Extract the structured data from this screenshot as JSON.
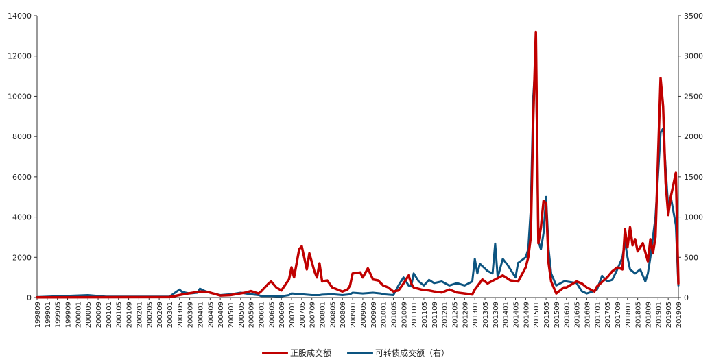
{
  "chart_data": {
    "type": "line",
    "title": "",
    "xlabel": "",
    "ylabel": "",
    "ylim_left": [
      0,
      14000
    ],
    "ylim_right": [
      0,
      3500
    ],
    "yticks_left": [
      "0",
      "2000",
      "4000",
      "6000",
      "8000",
      "10000",
      "12000",
      "14000"
    ],
    "yticks_right": [
      "0",
      "500",
      "1000",
      "1500",
      "2000",
      "2500",
      "3000",
      "3500"
    ],
    "x_tick_labels": [
      "199809",
      "199901",
      "199905",
      "199909",
      "200001",
      "200005",
      "200009",
      "200101",
      "200105",
      "200109",
      "200201",
      "200205",
      "200209",
      "200301",
      "200305",
      "200309",
      "200401",
      "200405",
      "200409",
      "200501",
      "200505",
      "200509",
      "200601",
      "200605",
      "200609",
      "200701",
      "200705",
      "200709",
      "200801",
      "200805",
      "200809",
      "200901",
      "200905",
      "200909",
      "201001",
      "201005",
      "201009",
      "201101",
      "201105",
      "201109",
      "201201",
      "201205",
      "201209",
      "201301",
      "201305",
      "201309",
      "201401",
      "201405",
      "201409",
      "201501",
      "201505",
      "201509",
      "201601",
      "201605",
      "201609",
      "201701",
      "201705",
      "201709",
      "201801",
      "201805",
      "201809",
      "201901",
      "201905",
      "201909"
    ],
    "grid": false,
    "legend_position": "bottom-center",
    "series": [
      {
        "name": "正股成交额",
        "axis": "left",
        "color": "#c00000",
        "points": [
          [
            "199809",
            10
          ],
          [
            "200301",
            20
          ],
          [
            "200306",
            150
          ],
          [
            "200401",
            300
          ],
          [
            "200404",
            280
          ],
          [
            "200409",
            100
          ],
          [
            "200501",
            120
          ],
          [
            "200507",
            250
          ],
          [
            "200509",
            320
          ],
          [
            "200512",
            200
          ],
          [
            "200601",
            300
          ],
          [
            "200604",
            700
          ],
          [
            "200605",
            800
          ],
          [
            "200607",
            500
          ],
          [
            "200609",
            350
          ],
          [
            "200612",
            900
          ],
          [
            "200701",
            1500
          ],
          [
            "200702",
            1000
          ],
          [
            "200704",
            2400
          ],
          [
            "200705",
            2550
          ],
          [
            "200707",
            1400
          ],
          [
            "200708",
            2200
          ],
          [
            "200710",
            1300
          ],
          [
            "200711",
            1000
          ],
          [
            "200712",
            1700
          ],
          [
            "200801",
            800
          ],
          [
            "200803",
            850
          ],
          [
            "200805",
            500
          ],
          [
            "200807",
            400
          ],
          [
            "200809",
            300
          ],
          [
            "200811",
            400
          ],
          [
            "200812",
            600
          ],
          [
            "200901",
            1200
          ],
          [
            "200904",
            1250
          ],
          [
            "200905",
            1000
          ],
          [
            "200907",
            1450
          ],
          [
            "200909",
            900
          ],
          [
            "200911",
            850
          ],
          [
            "201001",
            600
          ],
          [
            "201003",
            500
          ],
          [
            "201005",
            300
          ],
          [
            "201007",
            350
          ],
          [
            "201009",
            700
          ],
          [
            "201011",
            1100
          ],
          [
            "201012",
            700
          ],
          [
            "201101",
            500
          ],
          [
            "201104",
            400
          ],
          [
            "201107",
            350
          ],
          [
            "201109",
            300
          ],
          [
            "201112",
            250
          ],
          [
            "201203",
            400
          ],
          [
            "201206",
            250
          ],
          [
            "201209",
            200
          ],
          [
            "201212",
            150
          ],
          [
            "201301",
            400
          ],
          [
            "201304",
            900
          ],
          [
            "201306",
            700
          ],
          [
            "201309",
            900
          ],
          [
            "201312",
            1100
          ],
          [
            "201403",
            850
          ],
          [
            "201406",
            800
          ],
          [
            "201409",
            1500
          ],
          [
            "201410",
            2000
          ],
          [
            "201411",
            3000
          ],
          [
            "201412",
            9000
          ],
          [
            "201501",
            13200
          ],
          [
            "201502",
            2700
          ],
          [
            "201503",
            3500
          ],
          [
            "201504",
            4800
          ],
          [
            "201505",
            4700
          ],
          [
            "201506",
            1700
          ],
          [
            "201507",
            800
          ],
          [
            "201509",
            200
          ],
          [
            "201512",
            500
          ],
          [
            "201601",
            500
          ],
          [
            "201605",
            800
          ],
          [
            "201607",
            700
          ],
          [
            "201609",
            500
          ],
          [
            "201612",
            300
          ],
          [
            "201701",
            550
          ],
          [
            "201705",
            1000
          ],
          [
            "201707",
            1300
          ],
          [
            "201709",
            1500
          ],
          [
            "201711",
            1400
          ],
          [
            "201712",
            3400
          ],
          [
            "201801",
            2500
          ],
          [
            "201802",
            3500
          ],
          [
            "201803",
            2600
          ],
          [
            "201804",
            2900
          ],
          [
            "201805",
            2300
          ],
          [
            "201807",
            2700
          ],
          [
            "201809",
            1800
          ],
          [
            "201810",
            2900
          ],
          [
            "201811",
            2200
          ],
          [
            "201812",
            3000
          ],
          [
            "201902",
            10900
          ],
          [
            "201903",
            9500
          ],
          [
            "201904",
            5700
          ],
          [
            "201905",
            4100
          ],
          [
            "201906",
            5000
          ],
          [
            "201908",
            6200
          ],
          [
            "201909",
            700
          ]
        ]
      },
      {
        "name": "可转债成交额（右）",
        "axis": "right",
        "color": "#0c5480",
        "points": [
          [
            "199809",
            5
          ],
          [
            "200005",
            30
          ],
          [
            "200012",
            10
          ],
          [
            "200301",
            10
          ],
          [
            "200305",
            100
          ],
          [
            "200306",
            70
          ],
          [
            "200309",
            50
          ],
          [
            "200312",
            60
          ],
          [
            "200401",
            110
          ],
          [
            "200403",
            80
          ],
          [
            "200405",
            60
          ],
          [
            "200409",
            30
          ],
          [
            "200501",
            40
          ],
          [
            "200505",
            60
          ],
          [
            "200509",
            40
          ],
          [
            "200512",
            30
          ],
          [
            "200601",
            20
          ],
          [
            "200605",
            20
          ],
          [
            "200609",
            15
          ],
          [
            "200612",
            30
          ],
          [
            "200701",
            50
          ],
          [
            "200705",
            40
          ],
          [
            "200709",
            30
          ],
          [
            "200712",
            30
          ],
          [
            "200801",
            35
          ],
          [
            "200805",
            40
          ],
          [
            "200809",
            30
          ],
          [
            "200812",
            40
          ],
          [
            "200901",
            60
          ],
          [
            "200905",
            50
          ],
          [
            "200909",
            60
          ],
          [
            "200912",
            50
          ],
          [
            "201001",
            40
          ],
          [
            "201005",
            30
          ],
          [
            "201007",
            150
          ],
          [
            "201009",
            250
          ],
          [
            "201011",
            150
          ],
          [
            "201012",
            140
          ],
          [
            "201101",
            300
          ],
          [
            "201103",
            200
          ],
          [
            "201105",
            150
          ],
          [
            "201107",
            220
          ],
          [
            "201109",
            180
          ],
          [
            "201112",
            200
          ],
          [
            "201203",
            150
          ],
          [
            "201206",
            180
          ],
          [
            "201209",
            150
          ],
          [
            "201212",
            200
          ],
          [
            "201301",
            480
          ],
          [
            "201302",
            300
          ],
          [
            "201303",
            420
          ],
          [
            "201306",
            330
          ],
          [
            "201308",
            300
          ],
          [
            "201309",
            670
          ],
          [
            "201310",
            250
          ],
          [
            "201312",
            480
          ],
          [
            "201402",
            400
          ],
          [
            "201405",
            250
          ],
          [
            "201406",
            430
          ],
          [
            "201409",
            500
          ],
          [
            "201410",
            600
          ],
          [
            "201411",
            1100
          ],
          [
            "201412",
            2500
          ],
          [
            "201501",
            3000
          ],
          [
            "201502",
            700
          ],
          [
            "201503",
            600
          ],
          [
            "201504",
            800
          ],
          [
            "201505",
            1250
          ],
          [
            "201506",
            600
          ],
          [
            "201507",
            300
          ],
          [
            "201509",
            150
          ],
          [
            "201512",
            200
          ],
          [
            "201601",
            200
          ],
          [
            "201605",
            180
          ],
          [
            "201607",
            80
          ],
          [
            "201609",
            50
          ],
          [
            "201612",
            80
          ],
          [
            "201701",
            100
          ],
          [
            "201703",
            270
          ],
          [
            "201705",
            200
          ],
          [
            "201707",
            220
          ],
          [
            "201709",
            350
          ],
          [
            "201711",
            500
          ],
          [
            "201712",
            700
          ],
          [
            "201801",
            500
          ],
          [
            "201802",
            350
          ],
          [
            "201804",
            300
          ],
          [
            "201806",
            350
          ],
          [
            "201808",
            200
          ],
          [
            "201809",
            300
          ],
          [
            "201810",
            500
          ],
          [
            "201812",
            1000
          ],
          [
            "201902",
            2050
          ],
          [
            "201903",
            2100
          ],
          [
            "201905",
            1100
          ],
          [
            "201906",
            1250
          ],
          [
            "201908",
            900
          ],
          [
            "201909",
            150
          ]
        ]
      }
    ]
  }
}
